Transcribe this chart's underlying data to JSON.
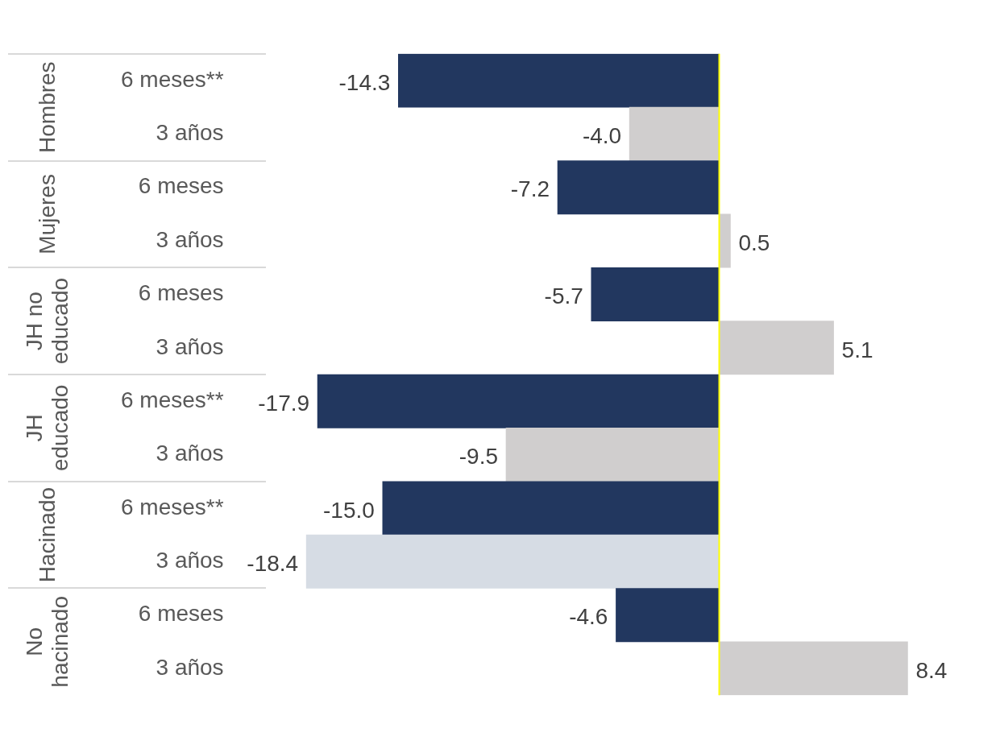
{
  "chart_data": {
    "type": "bar",
    "orientation": "horizontal",
    "categories": [
      "6 meses**",
      "3 años",
      "6 meses",
      "3 años",
      "6 meses",
      "3 años",
      "6 meses**",
      "3 años",
      "6 meses**",
      "3 años",
      "6 meses",
      "3 años"
    ],
    "values": [
      -14.3,
      -4.0,
      -7.2,
      0.5,
      -5.7,
      5.1,
      -17.9,
      -9.5,
      -15.0,
      -18.4,
      -4.6,
      8.4
    ],
    "value_labels": [
      "-14.3",
      "-4.0",
      "-7.2",
      "0.5",
      "-5.7",
      "5.1",
      "-17.9",
      "-9.5",
      "-15.0",
      "-18.4",
      "-4.6",
      "8.4"
    ],
    "colors": [
      "#22375f",
      "#d0cece",
      "#22375f",
      "#d0cece",
      "#22375f",
      "#d0cece",
      "#22375f",
      "#d0cece",
      "#22375f",
      "#d6dce4",
      "#22375f",
      "#d0cece"
    ],
    "annotations": [
      "Hombres",
      "Mujeres",
      "JH no educado",
      "JH educado",
      "Hacinado",
      "No hacinado"
    ],
    "ref_lines": [
      {
        "axis": "x",
        "value": 0,
        "color": "#ffff00"
      }
    ],
    "legend": false
  }
}
